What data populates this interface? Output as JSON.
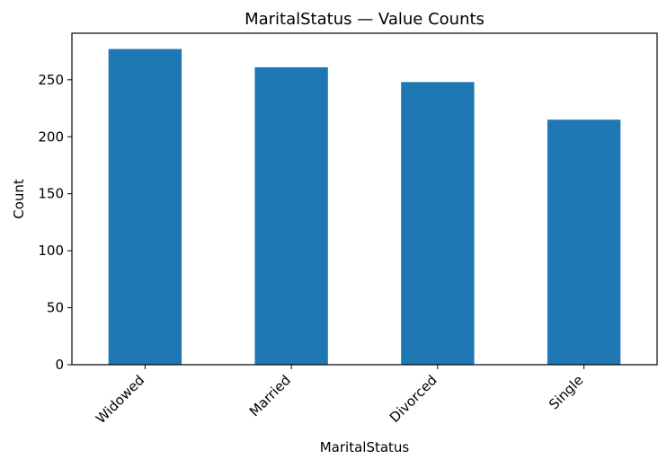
{
  "chart_data": {
    "type": "bar",
    "title": "MaritalStatus — Value Counts",
    "xlabel": "MaritalStatus",
    "ylabel": "Count",
    "categories": [
      "Widowed",
      "Married",
      "Divorced",
      "Single"
    ],
    "values": [
      277,
      261,
      248,
      215
    ],
    "ylim": [
      0,
      290.85
    ],
    "yticks": [
      0,
      50,
      100,
      150,
      200,
      250
    ],
    "bar_color": "#1f77b4",
    "grid": false,
    "legend": false
  }
}
